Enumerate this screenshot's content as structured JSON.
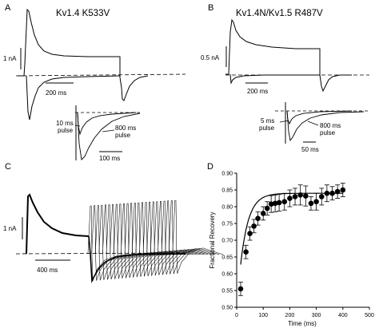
{
  "figure": {
    "panel_a": {
      "letter": "A",
      "title": "Kv1.4 K533V",
      "current_scale": "1 nA",
      "time_scale": "200 ms",
      "inset_time_scale": "100 ms",
      "inset_label_short": [
        "10 ms",
        "pulse"
      ],
      "inset_label_long": [
        "800 ms",
        "pulse"
      ]
    },
    "panel_b": {
      "letter": "B",
      "title": "Kv1.4N/Kv1.5 R487V",
      "current_scale": "0.5 nA",
      "time_scale": "200 ms",
      "inset_time_scale": "50 ms",
      "inset_label_short": [
        "5 ms",
        "pulse"
      ],
      "inset_label_long": [
        "800 ms",
        "pulse"
      ]
    },
    "panel_c": {
      "letter": "C",
      "current_scale": "1 nA",
      "time_scale": "400 ms"
    },
    "panel_d": {
      "letter": "D"
    }
  },
  "chart_data": {
    "type": "scatter",
    "xlabel": "Time (ms)",
    "ylabel": "Fractional Recovery",
    "xlim": [
      0,
      500
    ],
    "ylim": [
      0.5,
      0.9
    ],
    "xticks": [
      0,
      100,
      200,
      300,
      400,
      500
    ],
    "yticks": [
      0.5,
      0.55,
      0.6,
      0.65,
      0.7,
      0.75,
      0.8,
      0.85,
      0.9
    ],
    "grid": false,
    "points": [
      {
        "x": 15,
        "y": 0.555,
        "err": 0.02
      },
      {
        "x": 35,
        "y": 0.665,
        "err": 0.02
      },
      {
        "x": 50,
        "y": 0.72,
        "err": 0.02
      },
      {
        "x": 65,
        "y": 0.742,
        "err": 0.02
      },
      {
        "x": 80,
        "y": 0.765,
        "err": 0.02
      },
      {
        "x": 100,
        "y": 0.78,
        "err": 0.02
      },
      {
        "x": 115,
        "y": 0.795,
        "err": 0.02
      },
      {
        "x": 130,
        "y": 0.808,
        "err": 0.025
      },
      {
        "x": 145,
        "y": 0.81,
        "err": 0.025
      },
      {
        "x": 160,
        "y": 0.812,
        "err": 0.025
      },
      {
        "x": 180,
        "y": 0.815,
        "err": 0.025
      },
      {
        "x": 200,
        "y": 0.825,
        "err": 0.025
      },
      {
        "x": 220,
        "y": 0.83,
        "err": 0.025
      },
      {
        "x": 240,
        "y": 0.835,
        "err": 0.03
      },
      {
        "x": 260,
        "y": 0.832,
        "err": 0.03
      },
      {
        "x": 280,
        "y": 0.81,
        "err": 0.02
      },
      {
        "x": 300,
        "y": 0.815,
        "err": 0.025
      },
      {
        "x": 320,
        "y": 0.83,
        "err": 0.025
      },
      {
        "x": 340,
        "y": 0.84,
        "err": 0.025
      },
      {
        "x": 360,
        "y": 0.84,
        "err": 0.02
      },
      {
        "x": 380,
        "y": 0.845,
        "err": 0.02
      },
      {
        "x": 400,
        "y": 0.85,
        "err": 0.02
      }
    ],
    "fit_curve": {
      "a": 0.84,
      "b": 0.35,
      "tau": 30
    }
  }
}
